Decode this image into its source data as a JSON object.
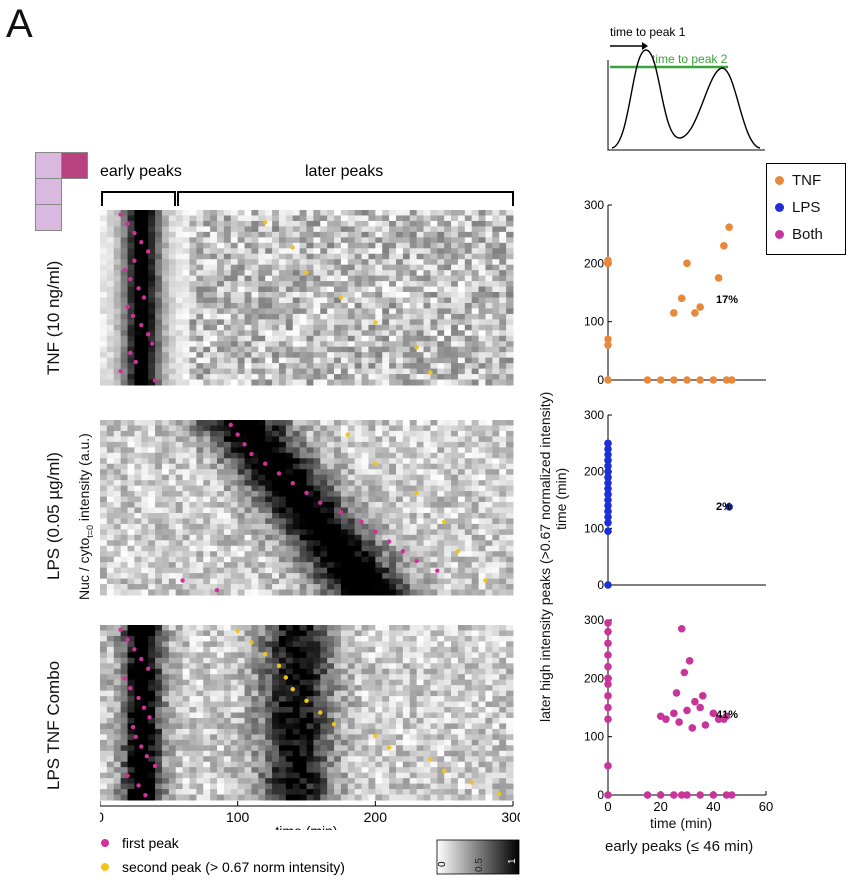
{
  "panel_letter": "A",
  "header": {
    "early_peaks": "early peaks",
    "later_peaks": "later peaks"
  },
  "rows": {
    "tnf": "TNF (10 ng/ml)",
    "lps": "LPS (0.05 µg/ml)",
    "combo": "LPS TNF Combo"
  },
  "y_axis_label_main": "Nuc / cyto",
  "y_axis_label_sub": "t=0",
  "y_axis_label_end": " intensity (a.u.)",
  "legend_bottom": {
    "first": "first peak",
    "second": "second peak (> 0.67 norm intensity)"
  },
  "colorbar": {
    "ticks": [
      "0",
      "0.5",
      "1"
    ]
  },
  "schematic": {
    "peak1": "time to peak 1",
    "peak2": "time to peak 2"
  },
  "scatter_legend": [
    {
      "label": "TNF",
      "color": "#e8883a"
    },
    {
      "label": "LPS",
      "color": "#1d2fd6"
    },
    {
      "label": "Both",
      "color": "#c7349a"
    }
  ],
  "scatter_ylabel_main": "later high intensity peaks (>0.67 normalized intensity)",
  "scatter_ylabel_sub": "time (min)",
  "scatter_xlabel_main": "time (min)",
  "scatter_xlabel_sub": "early peaks (≤ 46 min)",
  "colors": {
    "first_peak": "#d2309a",
    "second_peak": "#f2c318",
    "tnf": "#e8883a",
    "lps": "#1d2fd6",
    "both": "#c7349a"
  },
  "chart_data": [
    {
      "type": "heatmap",
      "title": "TNF (10 ng/ml)",
      "xlabel": "time (min)",
      "xlim": [
        0,
        300
      ],
      "xticks": [
        "0",
        "100",
        "200",
        "300"
      ],
      "first_peaks_min": [
        15,
        20,
        25,
        30,
        35,
        25,
        18,
        22,
        28,
        32,
        20,
        24,
        30,
        35,
        38,
        22,
        26,
        15,
        40
      ],
      "second_peaks_min": [
        120,
        140,
        150,
        175,
        200,
        230,
        240
      ]
    },
    {
      "type": "heatmap",
      "title": "LPS (0.05 µg/ml)",
      "xlabel": "time (min)",
      "xlim": [
        0,
        300
      ],
      "first_peaks_min": [
        95,
        100,
        105,
        110,
        120,
        130,
        140,
        150,
        160,
        175,
        190,
        200,
        210,
        220,
        230,
        245,
        60,
        85
      ],
      "second_peaks_min": [
        180,
        200,
        230,
        250,
        260,
        280
      ]
    },
    {
      "type": "heatmap",
      "title": "LPS TNF Combo",
      "xlabel": "time (min)",
      "xlim": [
        0,
        300
      ],
      "xticks": [
        "0",
        "100",
        "200",
        "300"
      ],
      "first_peaks_min": [
        15,
        20,
        25,
        30,
        35,
        18,
        22,
        28,
        32,
        36,
        24,
        26,
        30,
        34,
        40,
        20,
        28,
        33
      ],
      "second_peaks_min": [
        100,
        110,
        120,
        130,
        135,
        140,
        150,
        160,
        170,
        200,
        210,
        240,
        250,
        270,
        290
      ]
    },
    {
      "type": "scatter",
      "series": [
        {
          "name": "TNF",
          "x": [
            0,
            0,
            0,
            0,
            0,
            0,
            15,
            20,
            25,
            30,
            35,
            40,
            45,
            47,
            25,
            28,
            30,
            33,
            35,
            42,
            44,
            46
          ],
          "y": [
            0,
            60,
            70,
            200,
            205,
            200,
            0,
            0,
            0,
            0,
            0,
            0,
            0,
            0,
            115,
            140,
            200,
            115,
            125,
            175,
            230,
            262
          ]
        }
      ],
      "annotation": "17%",
      "xlim": [
        0,
        60
      ],
      "ylim": [
        0,
        300
      ],
      "yticks": [
        0,
        100,
        200,
        300
      ]
    },
    {
      "type": "scatter",
      "series": [
        {
          "name": "LPS",
          "x": [
            0,
            0,
            0,
            0,
            0,
            0,
            0,
            0,
            0,
            0,
            0,
            0,
            0,
            0,
            0,
            0,
            0,
            46
          ],
          "y": [
            0,
            95,
            110,
            120,
            130,
            140,
            150,
            160,
            170,
            180,
            190,
            200,
            210,
            220,
            230,
            240,
            250,
            138
          ]
        }
      ],
      "annotation": "2%",
      "xlim": [
        0,
        60
      ],
      "ylim": [
        0,
        300
      ],
      "yticks": [
        0,
        100,
        200,
        300
      ]
    },
    {
      "type": "scatter",
      "series": [
        {
          "name": "Both",
          "x": [
            0,
            0,
            0,
            0,
            0,
            0,
            0,
            0,
            0,
            0,
            0,
            0,
            15,
            20,
            25,
            28,
            30,
            35,
            40,
            45,
            47,
            28,
            20,
            25,
            30,
            35,
            40,
            45,
            22,
            27,
            32,
            37,
            42,
            29,
            31,
            33,
            26,
            36,
            44
          ],
          "y": [
            0,
            50,
            130,
            150,
            170,
            190,
            200,
            220,
            240,
            260,
            280,
            295,
            0,
            0,
            0,
            0,
            0,
            0,
            0,
            0,
            0,
            285,
            135,
            140,
            145,
            150,
            140,
            135,
            130,
            125,
            115,
            120,
            130,
            210,
            230,
            160,
            175,
            170,
            130
          ]
        }
      ],
      "annotation": "41%",
      "xlim": [
        0,
        60
      ],
      "ylim": [
        0,
        300
      ],
      "xticks": [
        0,
        20,
        40,
        60
      ],
      "yticks": [
        0,
        100,
        200,
        300
      ],
      "xlabel": "time (min)"
    }
  ]
}
